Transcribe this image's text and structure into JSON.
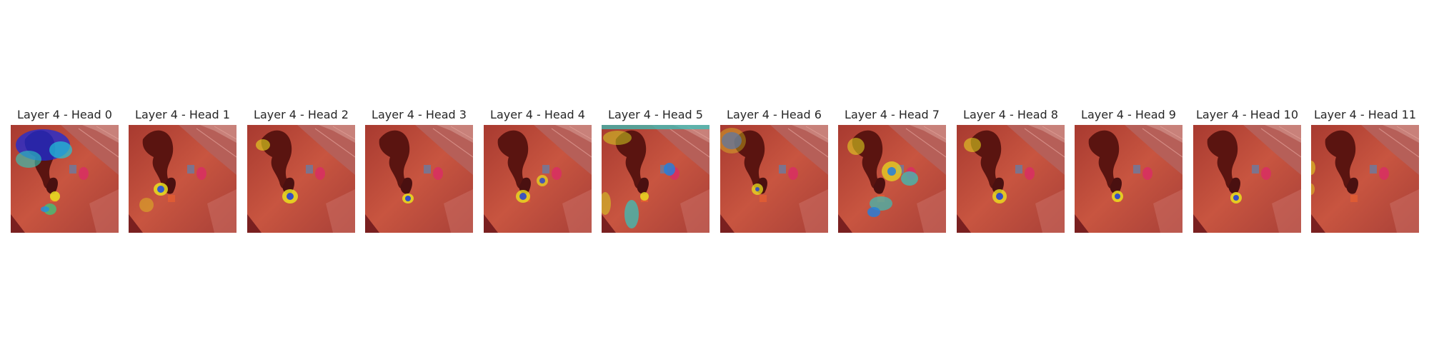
{
  "figure": {
    "panels": [
      {
        "title": "Layer 4 - Head 0",
        "scene": "robot-arm-tabletop",
        "overlay": "attention-heatmap-jet"
      },
      {
        "title": "Layer 4 - Head 1",
        "scene": "robot-arm-tabletop",
        "overlay": "attention-heatmap-jet"
      },
      {
        "title": "Layer 4 - Head 2",
        "scene": "robot-arm-tabletop",
        "overlay": "attention-heatmap-jet"
      },
      {
        "title": "Layer 4 - Head 3",
        "scene": "robot-arm-tabletop",
        "overlay": "attention-heatmap-jet"
      },
      {
        "title": "Layer 4 - Head 4",
        "scene": "robot-arm-tabletop",
        "overlay": "attention-heatmap-jet"
      },
      {
        "title": "Layer 4 - Head 5",
        "scene": "robot-arm-tabletop",
        "overlay": "attention-heatmap-jet"
      },
      {
        "title": "Layer 4 - Head 6",
        "scene": "robot-arm-tabletop",
        "overlay": "attention-heatmap-jet"
      },
      {
        "title": "Layer 4 - Head 7",
        "scene": "robot-arm-tabletop",
        "overlay": "attention-heatmap-jet"
      },
      {
        "title": "Layer 4 - Head 8",
        "scene": "robot-arm-tabletop",
        "overlay": "attention-heatmap-jet"
      },
      {
        "title": "Layer 4 - Head 9",
        "scene": "robot-arm-tabletop",
        "overlay": "attention-heatmap-jet"
      },
      {
        "title": "Layer 4 - Head 10",
        "scene": "robot-arm-tabletop",
        "overlay": "attention-heatmap-jet"
      },
      {
        "title": "Layer 4 - Head 11",
        "scene": "robot-arm-tabletop",
        "overlay": "attention-heatmap-jet"
      }
    ]
  }
}
